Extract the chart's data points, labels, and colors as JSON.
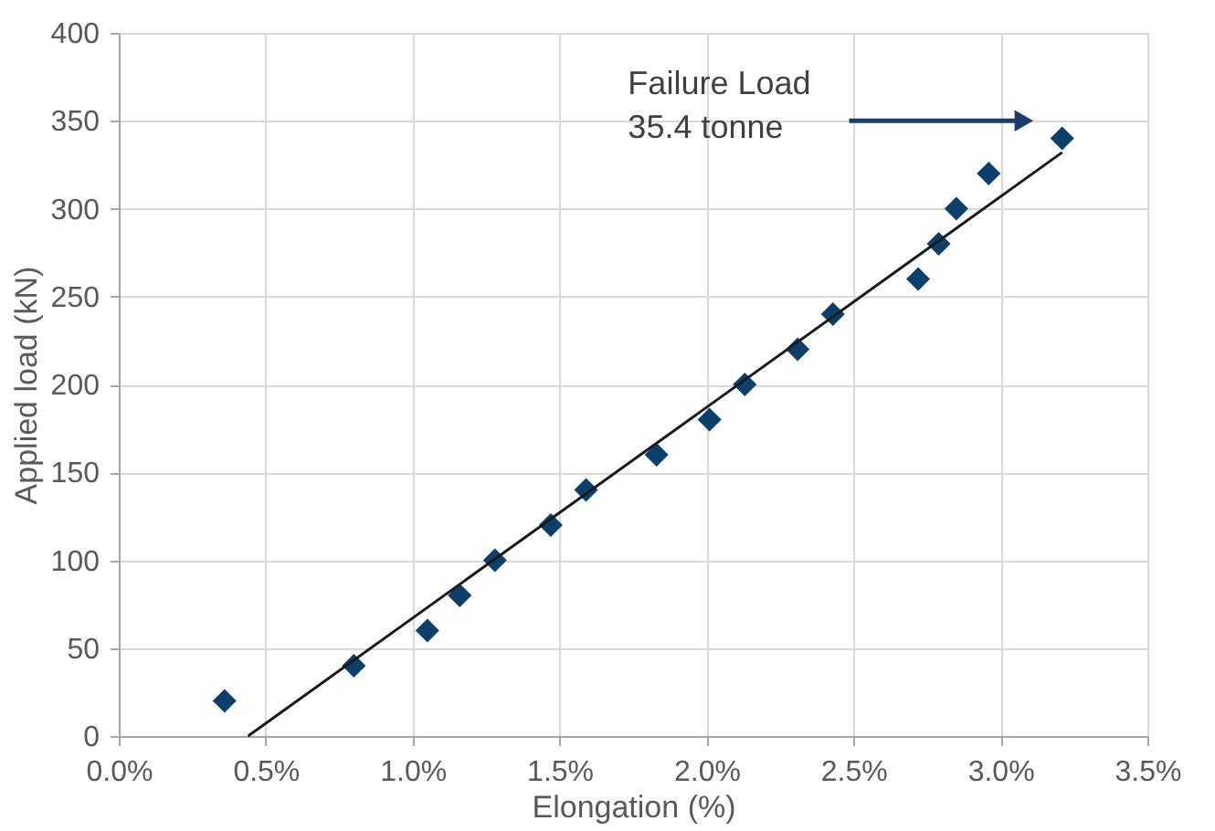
{
  "chart_data": {
    "type": "scatter",
    "xlabel": "Elongation (%)",
    "ylabel": "Applied load (kN)",
    "xlim": [
      0,
      3.5
    ],
    "xticks": [
      {
        "value": 0,
        "label": "0.0%"
      },
      {
        "value": 0.5,
        "label": "0.5%"
      },
      {
        "value": 1,
        "label": "1.0%"
      },
      {
        "value": 1.5,
        "label": "1.5%"
      },
      {
        "value": 2,
        "label": "2.0%"
      },
      {
        "value": 2.5,
        "label": "2.5%"
      },
      {
        "value": 3,
        "label": "3.0%"
      },
      {
        "value": 3.5,
        "label": "3.5%"
      }
    ],
    "ylim": [
      0,
      400
    ],
    "yticks": [
      0,
      50,
      100,
      150,
      200,
      250,
      300,
      350,
      400
    ],
    "grid": true,
    "series": [
      {
        "type": "scatter",
        "marker": "diamond",
        "color": "#0d3f6b",
        "x": [
          0.36,
          0.8,
          1.05,
          1.16,
          1.28,
          1.47,
          1.59,
          1.83,
          2.01,
          2.13,
          2.31,
          2.43,
          2.72,
          2.79,
          2.85,
          2.96,
          3.21
        ],
        "values": [
          20,
          40,
          60,
          80,
          100,
          120,
          140,
          160,
          180,
          200,
          220,
          240,
          260,
          280,
          300,
          320,
          340
        ]
      },
      {
        "type": "line",
        "line_style": "solid",
        "color": "#1a1a1a",
        "x": [
          0.44,
          3.21
        ],
        "values": [
          0,
          332
        ]
      }
    ],
    "annotations": [
      "Failure Load\n35.4 tonne"
    ]
  }
}
